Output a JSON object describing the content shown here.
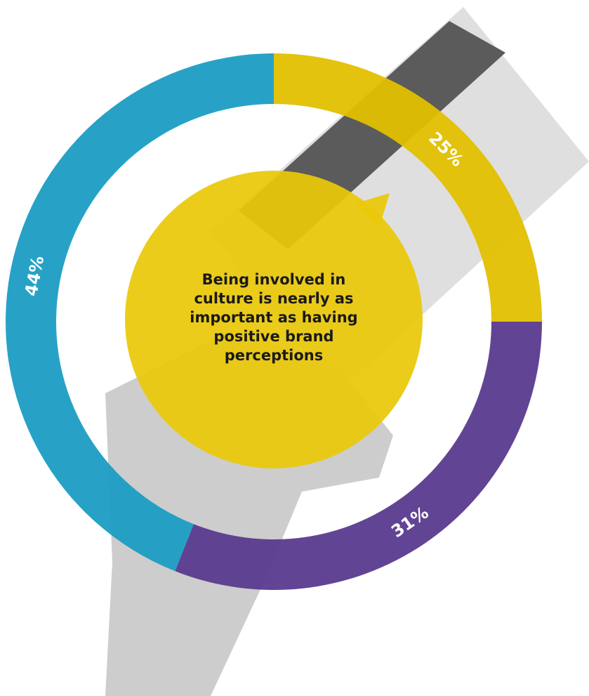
{
  "chart_data": {
    "type": "donut",
    "values": [
      25,
      31,
      44
    ],
    "value_labels": [
      "25%",
      "31%",
      "44%"
    ],
    "colors": [
      "#e2c000",
      "#5a3a8e",
      "#1b9dc3"
    ],
    "annotation": "Being involved in culture is nearly as important as having positive brand perceptions"
  }
}
